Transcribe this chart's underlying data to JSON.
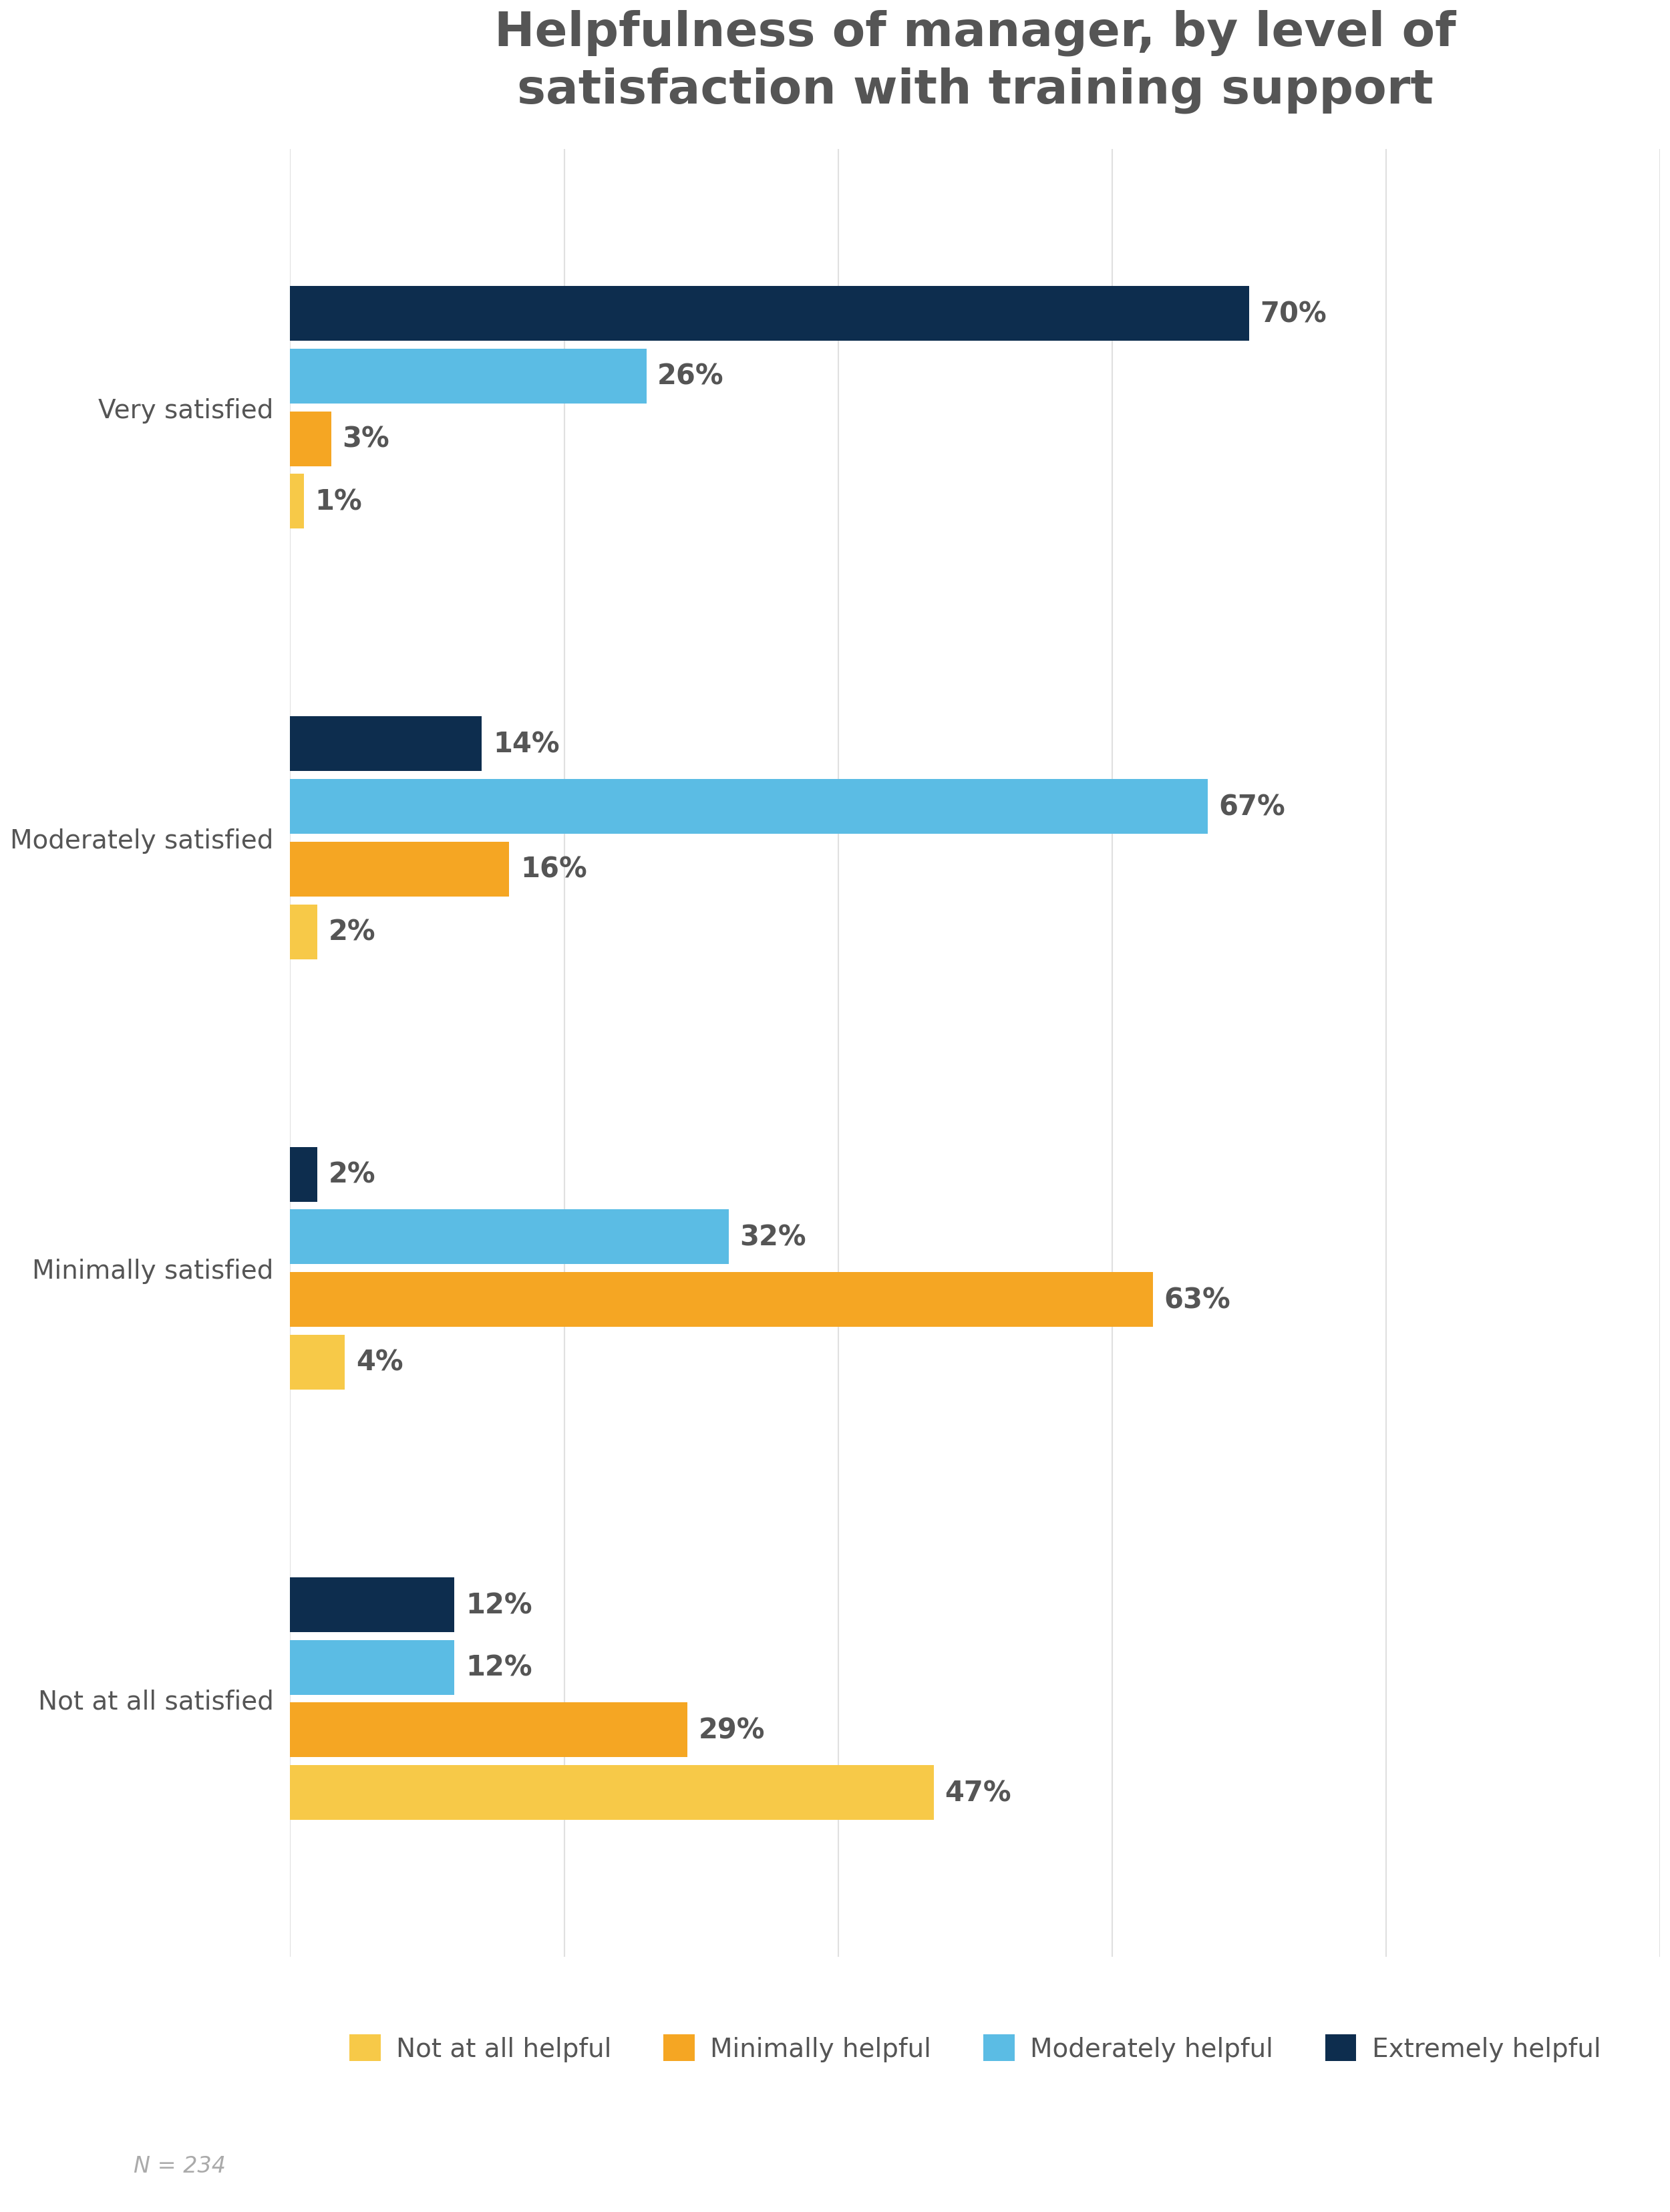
{
  "title": "Helpfulness of manager, by level of\nsatisfaction with training support",
  "categories": [
    "Very satisfied",
    "Moderately satisfied",
    "Minimally satisfied",
    "Not at all satisfied"
  ],
  "series": {
    "Extremely helpful": [
      70,
      14,
      2,
      12
    ],
    "Moderately helpful": [
      26,
      67,
      32,
      12
    ],
    "Minimally helpful": [
      3,
      16,
      63,
      29
    ],
    "Not at all helpful": [
      1,
      2,
      4,
      47
    ]
  },
  "colors": {
    "Extremely helpful": "#0d2d4e",
    "Moderately helpful": "#5bbce4",
    "Minimally helpful": "#f5a623",
    "Not at all helpful": "#f7c948"
  },
  "legend_order": [
    "Not at all helpful",
    "Minimally helpful",
    "Moderately helpful",
    "Extremely helpful"
  ],
  "xlim": [
    0,
    100
  ],
  "title_fontsize": 52,
  "label_fontsize": 30,
  "tick_fontsize": 28,
  "legend_fontsize": 28,
  "annotation": "N = 234",
  "background_color": "#ffffff",
  "title_color": "#555555",
  "tick_color": "#555555",
  "annotation_color": "#aaaaaa",
  "grid_color": "#e0e0e0"
}
